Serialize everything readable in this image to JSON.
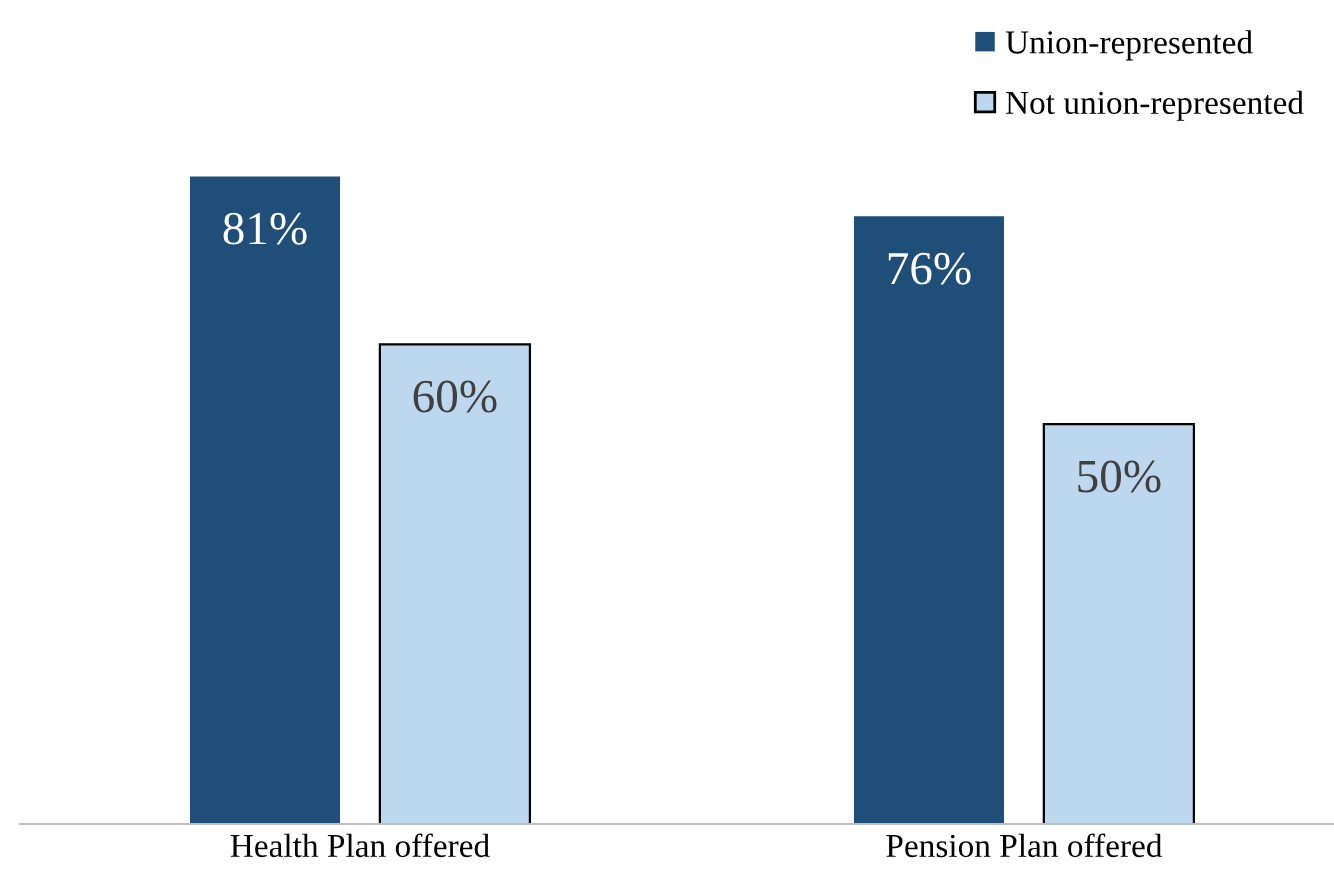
{
  "chart_data": {
    "type": "bar",
    "categories": [
      "Health Plan offered",
      "Pension Plan offered"
    ],
    "series": [
      {
        "name": "Union-represented",
        "color": "#1f4e79",
        "values": [
          81,
          76
        ],
        "value_labels": [
          "81%",
          "76%"
        ]
      },
      {
        "name": "Not union-represented",
        "color": "#bdd7ee",
        "values": [
          60,
          50
        ],
        "value_labels": [
          "60%",
          "50%"
        ]
      }
    ],
    "tick_labels": "x",
    "legend": "top right",
    "grid": false
  }
}
